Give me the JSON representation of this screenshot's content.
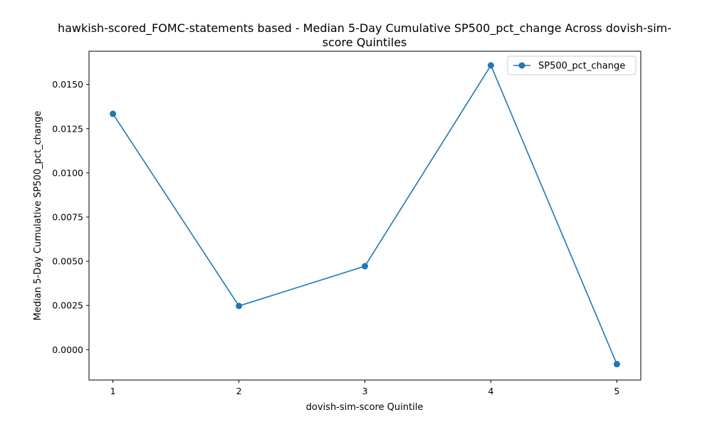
{
  "chart_data": {
    "type": "line",
    "title_line1": "hawkish-scored_FOMC-statements based - Median 5-Day Cumulative SP500_pct_change Across dovish-sim-",
    "title_line2": "score Quintiles",
    "xlabel": "dovish-sim-score Quintile",
    "ylabel": "Median 5-Day Cumulative SP500_pct_change",
    "x": [
      1,
      2,
      3,
      4,
      5
    ],
    "x_tick_labels": [
      "1",
      "2",
      "3",
      "4",
      "5"
    ],
    "xlim": [
      0.81,
      5.19
    ],
    "ylim": [
      -0.00172,
      0.01688
    ],
    "y_ticks": [
      0.0,
      0.0025,
      0.005,
      0.0075,
      0.01,
      0.0125,
      0.015
    ],
    "y_tick_labels": [
      "0.0000",
      "0.0025",
      "0.0050",
      "0.0075",
      "0.0100",
      "0.0125",
      "0.0150"
    ],
    "series": [
      {
        "name": "SP500_pct_change",
        "values": [
          0.01334,
          0.00247,
          0.00472,
          0.01608,
          -0.00082
        ],
        "color": "#1f77b4",
        "marker": "circle"
      }
    ],
    "legend_position": "top-right",
    "grid": false
  }
}
